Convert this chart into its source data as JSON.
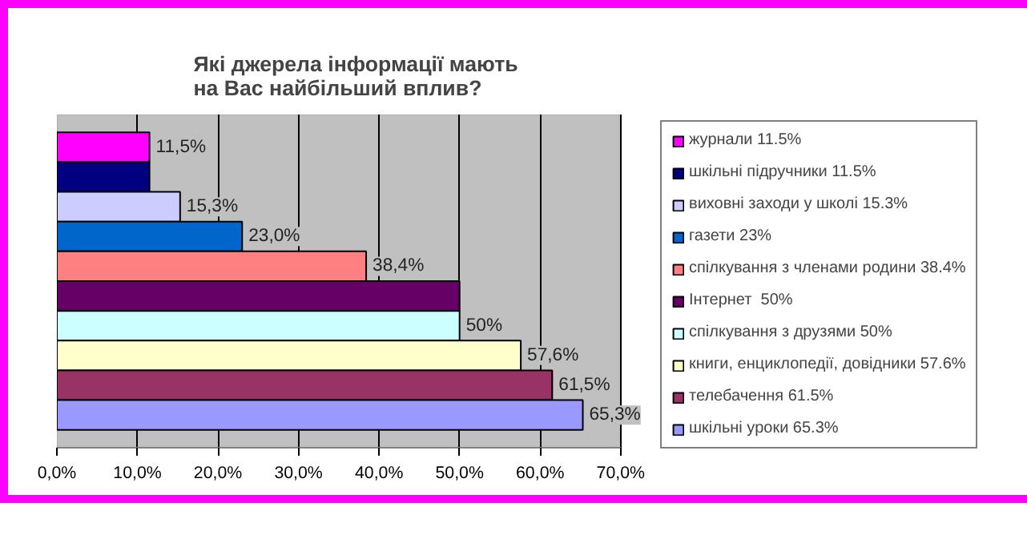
{
  "chart_data": {
    "type": "bar",
    "orientation": "horizontal",
    "title": "Які джерела інформації мають на Вас найбільший вплив?",
    "categories": [
      null
    ],
    "series": [
      {
        "name": "журнали 11.5%",
        "color": "#ff00ff",
        "values": [
          11.5
        ],
        "value_labels": [
          "11,5%"
        ]
      },
      {
        "name": "шкільні підручники 11.5%",
        "color": "#000080",
        "values": [
          11.5
        ],
        "value_labels": [
          null
        ]
      },
      {
        "name": "виховні заходи у школі 15.3%",
        "color": "#ccccff",
        "values": [
          15.3
        ],
        "value_labels": [
          "15,3%"
        ]
      },
      {
        "name": "газети 23%",
        "color": "#0066cc",
        "values": [
          23.0
        ],
        "value_labels": [
          "23,0%"
        ]
      },
      {
        "name": "спілкування з членами родини 38.4%",
        "color": "#ff8080",
        "values": [
          38.4
        ],
        "value_labels": [
          "38,4%"
        ]
      },
      {
        "name": "Інтернет  50%",
        "color": "#660066",
        "values": [
          50
        ],
        "value_labels": [
          null
        ]
      },
      {
        "name": "спілкування з друзями 50%",
        "color": "#ccffff",
        "values": [
          50
        ],
        "value_labels": [
          "50%"
        ]
      },
      {
        "name": "книги, енциклопедії, довідники 57.6%",
        "color": "#ffffcc",
        "values": [
          57.6
        ],
        "value_labels": [
          "57,6%"
        ]
      },
      {
        "name": "телебачення 61.5%",
        "color": "#993366",
        "values": [
          61.5
        ],
        "value_labels": [
          "61,5%"
        ]
      },
      {
        "name": "шкільні уроки 65.3%",
        "color": "#9999ff",
        "values": [
          65.3
        ],
        "value_labels": [
          "65,3%"
        ]
      }
    ],
    "xlim": [
      0,
      70
    ],
    "xticks": [
      {
        "value": 0,
        "label": "0,0%"
      },
      {
        "value": 10,
        "label": "10,0%"
      },
      {
        "value": 20,
        "label": "20,0%"
      },
      {
        "value": 30,
        "label": "30,0%"
      },
      {
        "value": 40,
        "label": "40,0%"
      },
      {
        "value": 50,
        "label": "50,0%"
      },
      {
        "value": 60,
        "label": "60,0%"
      },
      {
        "value": 70,
        "label": "70,0%"
      }
    ],
    "grid": "x",
    "legend": "right"
  }
}
